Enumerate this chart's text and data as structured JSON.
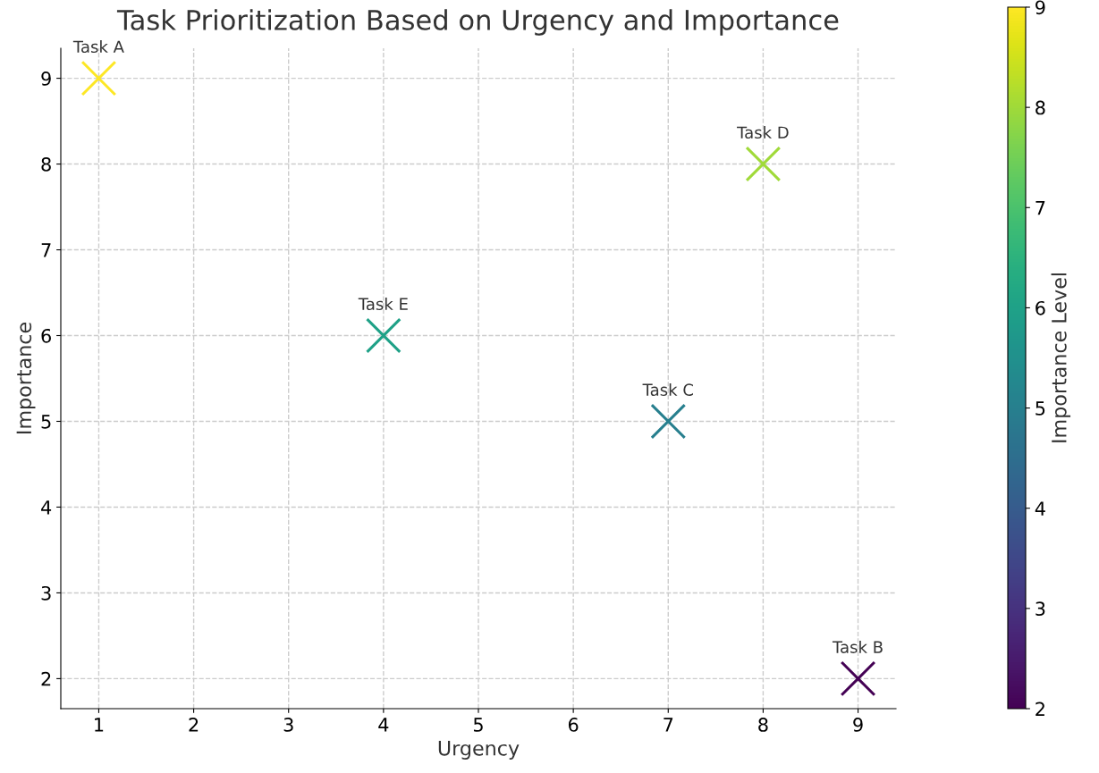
{
  "chart_data": {
    "type": "scatter",
    "title": "Task Prioritization Based on Urgency and Importance",
    "xlabel": "Urgency",
    "ylabel": "Importance",
    "clabel": "Importance Level",
    "x": [
      1,
      9,
      7,
      8,
      4
    ],
    "values": [
      9,
      2,
      5,
      8,
      6
    ],
    "cvalues": [
      9,
      2,
      5,
      8,
      6
    ],
    "annotations": [
      {
        "text": "Task A",
        "x": 1,
        "y": 9
      },
      {
        "text": "Task B",
        "x": 9,
        "y": 2
      },
      {
        "text": "Task C",
        "x": 7,
        "y": 5
      },
      {
        "text": "Task D",
        "x": 8,
        "y": 8
      },
      {
        "text": "Task E",
        "x": 4,
        "y": 6
      }
    ],
    "xlim": [
      0.6,
      9.4
    ],
    "ylim": [
      1.65,
      9.35
    ],
    "xticks": [
      1,
      2,
      3,
      4,
      5,
      6,
      7,
      8,
      9
    ],
    "yticks": [
      2,
      3,
      4,
      5,
      6,
      7,
      8,
      9
    ],
    "clim": [
      2,
      9
    ],
    "cticks": [
      2,
      3,
      4,
      5,
      6,
      7,
      8,
      9
    ],
    "marker": "cross",
    "grid": true,
    "line_style": "dashed"
  }
}
